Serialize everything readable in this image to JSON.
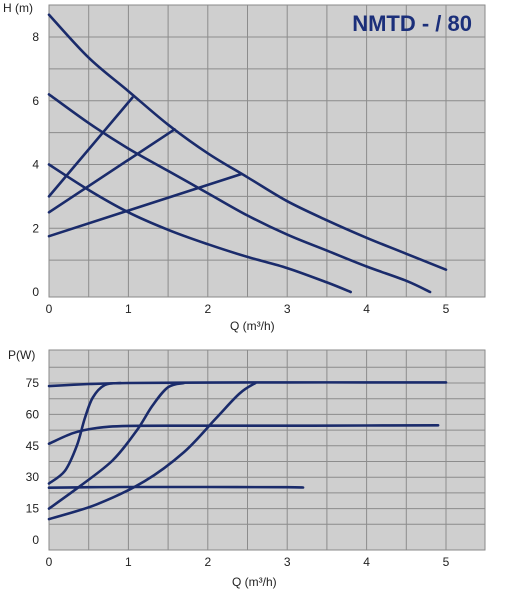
{
  "chart_data": [
    {
      "type": "line",
      "title": "NMTD - / 80",
      "ylabel": "H (m)",
      "xlabel": "Q (m³/h)",
      "xlim": [
        0,
        5.5
      ],
      "ylim": [
        0,
        9
      ],
      "xticks": [
        0,
        1,
        2,
        3,
        4,
        5
      ],
      "yticks": [
        0,
        2,
        4,
        6,
        8
      ],
      "grid": true,
      "series": [
        {
          "x": [
            0,
            0.5,
            1,
            1.5,
            2,
            2.5,
            3,
            3.5,
            3.8
          ],
          "y": [
            4.0,
            3.2,
            2.5,
            1.95,
            1.5,
            1.1,
            0.75,
            0.3,
            0.0
          ]
        },
        {
          "x": [
            0,
            0.5,
            1,
            1.5,
            2,
            2.5,
            3,
            3.5,
            4,
            4.5,
            4.8
          ],
          "y": [
            6.2,
            5.3,
            4.5,
            3.8,
            3.1,
            2.4,
            1.8,
            1.3,
            0.8,
            0.35,
            0.0
          ]
        },
        {
          "x": [
            0,
            0.5,
            1,
            1.5,
            2,
            2.5,
            3,
            3.5,
            4,
            4.5,
            5
          ],
          "y": [
            8.7,
            7.35,
            6.3,
            5.25,
            4.35,
            3.6,
            2.85,
            2.25,
            1.7,
            1.2,
            0.7
          ]
        },
        {
          "x": [
            0,
            1.05
          ],
          "y": [
            3.0,
            6.1
          ]
        },
        {
          "x": [
            0,
            1.58
          ],
          "y": [
            2.5,
            5.1
          ]
        },
        {
          "x": [
            0,
            2.42
          ],
          "y": [
            1.75,
            3.7
          ]
        }
      ]
    },
    {
      "type": "line",
      "ylabel": "P(W)",
      "xlabel": "Q (m³/h)",
      "xlim": [
        0,
        5.5
      ],
      "ylim": [
        0,
        90
      ],
      "xticks": [
        0,
        1,
        2,
        3,
        4,
        5
      ],
      "yticks": [
        0,
        15,
        30,
        45,
        60,
        75
      ],
      "grid": true,
      "series": [
        {
          "x": [
            0,
            0.5,
            1,
            2,
            3,
            4,
            5
          ],
          "y": [
            73.5,
            74.5,
            75,
            75.2,
            75.3,
            75.3,
            75.3
          ]
        },
        {
          "x": [
            0,
            0.3,
            0.6,
            1,
            2,
            3,
            4,
            4.9
          ],
          "y": [
            46,
            51,
            53.5,
            54.5,
            54.6,
            54.6,
            54.7,
            54.8
          ]
        },
        {
          "x": [
            0,
            0.5,
            1,
            2,
            3,
            3.2
          ],
          "y": [
            25,
            25.2,
            25.3,
            25.3,
            25.2,
            25.1
          ]
        },
        {
          "x": [
            0,
            0.2,
            0.35,
            0.45,
            0.55,
            0.7,
            0.9
          ],
          "y": [
            27,
            33,
            45,
            58,
            68,
            74,
            75
          ]
        },
        {
          "x": [
            0,
            0.4,
            0.8,
            1.1,
            1.3,
            1.5,
            1.7
          ],
          "y": [
            15,
            26,
            38,
            52,
            64,
            73,
            75
          ]
        },
        {
          "x": [
            0,
            0.6,
            1.2,
            1.7,
            2.1,
            2.4,
            2.6
          ],
          "y": [
            10,
            17,
            28,
            42,
            58,
            70,
            75
          ]
        }
      ]
    }
  ]
}
